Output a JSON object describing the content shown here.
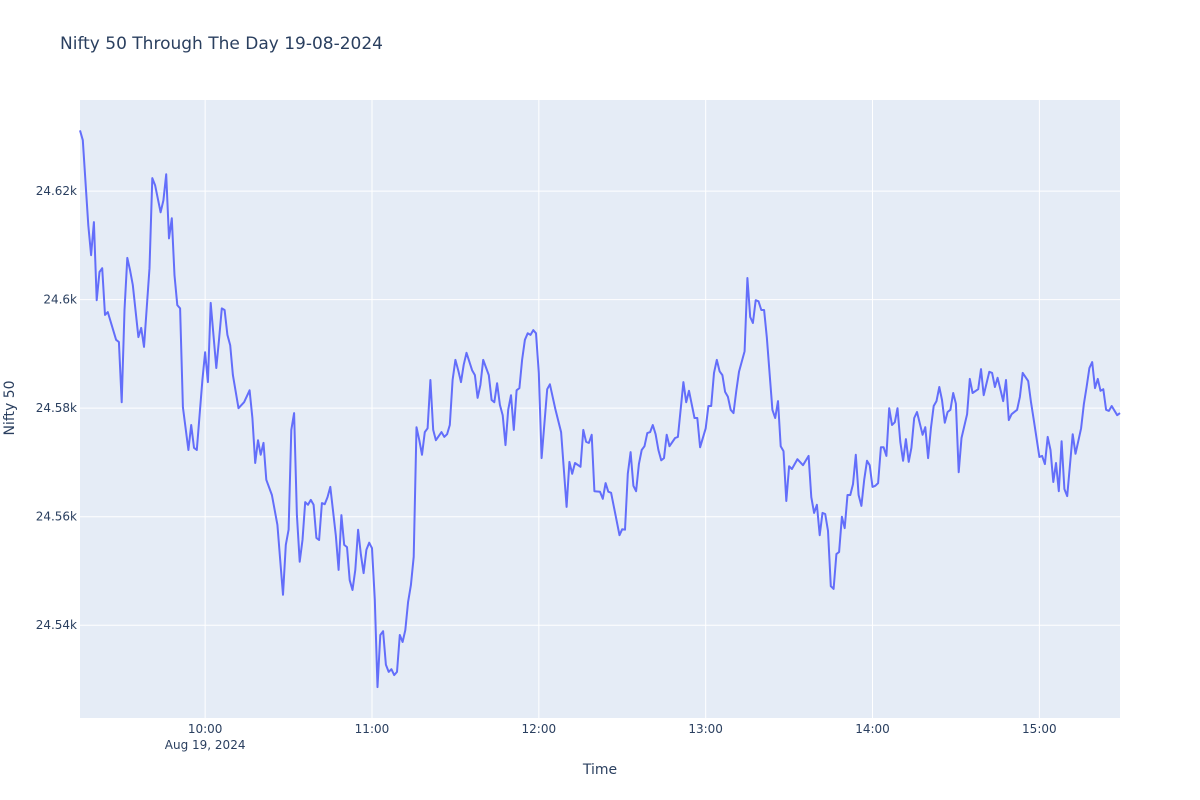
{
  "chart_data": {
    "type": "line",
    "title": "Nifty 50 Through The Day 19-08-2024",
    "xlabel": "Time",
    "ylabel": "Nifty 50",
    "xlim": [
      "09:15",
      "15:29"
    ],
    "ylim": [
      24522.9,
      24636.8
    ],
    "grid": true,
    "line_color": "#636efa",
    "plot_bg": "#e5ecf6",
    "x_ticks": [
      {
        "time": "10:00",
        "label": "10:00",
        "sublabel": "Aug 19, 2024"
      },
      {
        "time": "11:00",
        "label": "11:00"
      },
      {
        "time": "12:00",
        "label": "12:00"
      },
      {
        "time": "13:00",
        "label": "13:00"
      },
      {
        "time": "14:00",
        "label": "14:00"
      },
      {
        "time": "15:00",
        "label": "15:00"
      }
    ],
    "y_ticks": [
      {
        "value": 24540,
        "label": "24.54k"
      },
      {
        "value": 24560,
        "label": "24.56k"
      },
      {
        "value": 24580,
        "label": "24.58k"
      },
      {
        "value": 24600,
        "label": "24.6k"
      },
      {
        "value": 24620,
        "label": "24.62k"
      }
    ],
    "points": [
      [
        "09:15",
        24631.2
      ],
      [
        "09:16",
        24629.4
      ],
      [
        "09:18",
        24613.7
      ],
      [
        "09:19",
        24608.2
      ],
      [
        "09:20",
        24614.3
      ],
      [
        "09:21",
        24599.9
      ],
      [
        "09:22",
        24605.1
      ],
      [
        "09:23",
        24605.8
      ],
      [
        "09:24",
        24597.2
      ],
      [
        "09:25",
        24597.7
      ],
      [
        "09:28",
        24592.6
      ],
      [
        "09:29",
        24592.2
      ],
      [
        "09:30",
        24581.1
      ],
      [
        "09:31",
        24598.1
      ],
      [
        "09:32",
        24607.7
      ],
      [
        "09:33",
        24605.4
      ],
      [
        "09:34",
        24602.7
      ],
      [
        "09:36",
        24593.1
      ],
      [
        "09:37",
        24594.8
      ],
      [
        "09:38",
        24591.3
      ],
      [
        "09:40",
        24605.8
      ],
      [
        "09:41",
        24622.4
      ],
      [
        "09:42",
        24621.1
      ],
      [
        "09:44",
        24616.1
      ],
      [
        "09:45",
        24618.3
      ],
      [
        "09:46",
        24623.1
      ],
      [
        "09:47",
        24611.3
      ],
      [
        "09:48",
        24615.0
      ],
      [
        "09:49",
        24604.5
      ],
      [
        "09:50",
        24599.0
      ],
      [
        "09:51",
        24598.4
      ],
      [
        "09:52",
        24580.2
      ],
      [
        "09:54",
        24572.3
      ],
      [
        "09:55",
        24576.9
      ],
      [
        "09:56",
        24572.7
      ],
      [
        "09:57",
        24572.3
      ],
      [
        "09:59",
        24585.2
      ],
      [
        "10:00",
        24590.3
      ],
      [
        "10:01",
        24584.8
      ],
      [
        "10:02",
        24599.4
      ],
      [
        "10:04",
        24587.4
      ],
      [
        "10:05",
        24592.6
      ],
      [
        "10:06",
        24598.4
      ],
      [
        "10:07",
        24598.1
      ],
      [
        "10:08",
        24593.5
      ],
      [
        "10:09",
        24591.6
      ],
      [
        "10:10",
        24586.1
      ],
      [
        "10:12",
        24580.0
      ],
      [
        "10:14",
        24581.1
      ],
      [
        "10:16",
        24583.3
      ],
      [
        "10:17",
        24578.2
      ],
      [
        "10:18",
        24569.9
      ],
      [
        "10:19",
        24574.1
      ],
      [
        "10:20",
        24571.4
      ],
      [
        "10:21",
        24573.6
      ],
      [
        "10:22",
        24566.8
      ],
      [
        "10:24",
        24564.0
      ],
      [
        "10:26",
        24558.5
      ],
      [
        "10:27",
        24552.0
      ],
      [
        "10:28",
        24545.6
      ],
      [
        "10:29",
        24554.8
      ],
      [
        "10:30",
        24557.6
      ],
      [
        "10:31",
        24576.0
      ],
      [
        "10:32",
        24579.1
      ],
      [
        "10:33",
        24560.3
      ],
      [
        "10:34",
        24551.7
      ],
      [
        "10:35",
        24555.7
      ],
      [
        "10:36",
        24562.7
      ],
      [
        "10:37",
        24562.2
      ],
      [
        "10:38",
        24563.1
      ],
      [
        "10:39",
        24562.2
      ],
      [
        "10:40",
        24556.1
      ],
      [
        "10:41",
        24555.7
      ],
      [
        "10:42",
        24562.5
      ],
      [
        "10:43",
        24562.3
      ],
      [
        "10:44",
        24563.6
      ],
      [
        "10:45",
        24565.5
      ],
      [
        "10:47",
        24556.6
      ],
      [
        "10:48",
        24550.2
      ],
      [
        "10:49",
        24560.3
      ],
      [
        "10:50",
        24554.8
      ],
      [
        "10:51",
        24554.4
      ],
      [
        "10:52",
        24548.3
      ],
      [
        "10:53",
        24546.5
      ],
      [
        "10:54",
        24550.2
      ],
      [
        "10:55",
        24557.6
      ],
      [
        "10:56",
        24553.0
      ],
      [
        "10:57",
        24549.6
      ],
      [
        "10:58",
        24553.9
      ],
      [
        "10:59",
        24555.2
      ],
      [
        "11:00",
        24554.2
      ],
      [
        "11:01",
        24544.7
      ],
      [
        "11:02",
        24528.6
      ],
      [
        "11:03",
        24538.2
      ],
      [
        "11:04",
        24538.9
      ],
      [
        "11:05",
        24532.7
      ],
      [
        "11:06",
        24531.4
      ],
      [
        "11:07",
        24531.9
      ],
      [
        "11:08",
        24530.8
      ],
      [
        "11:09",
        24531.4
      ],
      [
        "11:10",
        24538.2
      ],
      [
        "11:11",
        24536.9
      ],
      [
        "11:12",
        24539.1
      ],
      [
        "11:13",
        24544.3
      ],
      [
        "11:14",
        24547.4
      ],
      [
        "11:15",
        24552.6
      ],
      [
        "11:16",
        24576.5
      ],
      [
        "11:17",
        24574.1
      ],
      [
        "11:18",
        24571.4
      ],
      [
        "11:19",
        24575.6
      ],
      [
        "11:20",
        24576.3
      ],
      [
        "11:21",
        24585.2
      ],
      [
        "11:22",
        24576.0
      ],
      [
        "11:23",
        24574.1
      ],
      [
        "11:25",
        24575.6
      ],
      [
        "11:26",
        24574.7
      ],
      [
        "11:27",
        24575.2
      ],
      [
        "11:28",
        24576.9
      ],
      [
        "11:29",
        24585.2
      ],
      [
        "11:30",
        24588.9
      ],
      [
        "11:31",
        24587.0
      ],
      [
        "11:32",
        24584.8
      ],
      [
        "11:33",
        24588.0
      ],
      [
        "11:34",
        24590.2
      ],
      [
        "11:36",
        24587.0
      ],
      [
        "11:37",
        24586.1
      ],
      [
        "11:38",
        24581.9
      ],
      [
        "11:39",
        24584.3
      ],
      [
        "11:40",
        24588.9
      ],
      [
        "11:42",
        24586.1
      ],
      [
        "11:43",
        24581.5
      ],
      [
        "11:44",
        24581.1
      ],
      [
        "11:45",
        24584.6
      ],
      [
        "11:46",
        24580.6
      ],
      [
        "11:47",
        24578.7
      ],
      [
        "11:48",
        24573.2
      ],
      [
        "11:49",
        24579.7
      ],
      [
        "11:50",
        24582.4
      ],
      [
        "11:51",
        24576.0
      ],
      [
        "11:52",
        24583.3
      ],
      [
        "11:53",
        24583.7
      ],
      [
        "11:54",
        24588.9
      ],
      [
        "11:55",
        24592.6
      ],
      [
        "11:56",
        24593.8
      ],
      [
        "11:57",
        24593.5
      ],
      [
        "11:58",
        24594.4
      ],
      [
        "11:59",
        24593.8
      ],
      [
        "12:00",
        24586.5
      ],
      [
        "12:01",
        24570.8
      ],
      [
        "12:03",
        24583.5
      ],
      [
        "12:04",
        24584.4
      ],
      [
        "12:06",
        24579.7
      ],
      [
        "12:08",
        24575.6
      ],
      [
        "12:10",
        24561.8
      ],
      [
        "12:11",
        24570.1
      ],
      [
        "12:12",
        24567.9
      ],
      [
        "12:13",
        24569.9
      ],
      [
        "12:15",
        24569.2
      ],
      [
        "12:16",
        24576.0
      ],
      [
        "12:17",
        24573.8
      ],
      [
        "12:18",
        24573.6
      ],
      [
        "12:19",
        24575.1
      ],
      [
        "12:20",
        24564.7
      ],
      [
        "12:22",
        24564.6
      ],
      [
        "12:23",
        24563.3
      ],
      [
        "12:24",
        24566.2
      ],
      [
        "12:25",
        24564.6
      ],
      [
        "12:26",
        24564.4
      ],
      [
        "12:27",
        24561.8
      ],
      [
        "12:29",
        24556.6
      ],
      [
        "12:30",
        24557.7
      ],
      [
        "12:31",
        24557.6
      ],
      [
        "12:32",
        24567.9
      ],
      [
        "12:33",
        24571.9
      ],
      [
        "12:34",
        24565.7
      ],
      [
        "12:35",
        24564.7
      ],
      [
        "12:36",
        24569.7
      ],
      [
        "12:37",
        24572.3
      ],
      [
        "12:38",
        24573.0
      ],
      [
        "12:39",
        24575.4
      ],
      [
        "12:40",
        24575.6
      ],
      [
        "12:41",
        24576.9
      ],
      [
        "12:42",
        24575.2
      ],
      [
        "12:43",
        24572.3
      ],
      [
        "12:44",
        24570.4
      ],
      [
        "12:45",
        24570.8
      ],
      [
        "12:46",
        24575.1
      ],
      [
        "12:47",
        24573.0
      ],
      [
        "12:49",
        24574.5
      ],
      [
        "12:50",
        24574.7
      ],
      [
        "12:52",
        24584.8
      ],
      [
        "12:53",
        24581.1
      ],
      [
        "12:54",
        24583.2
      ],
      [
        "12:56",
        24578.2
      ],
      [
        "12:57",
        24578.2
      ],
      [
        "12:58",
        24572.8
      ],
      [
        "13:00",
        24576.3
      ],
      [
        "13:01",
        24580.4
      ],
      [
        "13:02",
        24580.4
      ],
      [
        "13:03",
        24586.5
      ],
      [
        "13:04",
        24588.9
      ],
      [
        "13:05",
        24586.8
      ],
      [
        "13:06",
        24586.1
      ],
      [
        "13:07",
        24583.0
      ],
      [
        "13:08",
        24582.1
      ],
      [
        "13:09",
        24579.7
      ],
      [
        "13:10",
        24579.1
      ],
      [
        "13:11",
        24583.2
      ],
      [
        "13:12",
        24586.7
      ],
      [
        "13:14",
        24590.5
      ],
      [
        "13:15",
        24604.0
      ],
      [
        "13:16",
        24596.8
      ],
      [
        "13:17",
        24595.7
      ],
      [
        "13:18",
        24599.9
      ],
      [
        "13:19",
        24599.7
      ],
      [
        "13:20",
        24598.1
      ],
      [
        "13:21",
        24598.1
      ],
      [
        "13:22",
        24593.1
      ],
      [
        "13:24",
        24579.7
      ],
      [
        "13:25",
        24578.2
      ],
      [
        "13:26",
        24581.3
      ],
      [
        "13:27",
        24573.0
      ],
      [
        "13:28",
        24572.1
      ],
      [
        "13:29",
        24562.9
      ],
      [
        "13:30",
        24569.3
      ],
      [
        "13:31",
        24568.8
      ],
      [
        "13:33",
        24570.6
      ],
      [
        "13:35",
        24569.5
      ],
      [
        "13:37",
        24571.2
      ],
      [
        "13:38",
        24563.6
      ],
      [
        "13:39",
        24560.7
      ],
      [
        "13:40",
        24562.2
      ],
      [
        "13:41",
        24556.6
      ],
      [
        "13:42",
        24560.7
      ],
      [
        "13:43",
        24560.5
      ],
      [
        "13:44",
        24557.4
      ],
      [
        "13:45",
        24547.2
      ],
      [
        "13:46",
        24546.7
      ],
      [
        "13:47",
        24553.1
      ],
      [
        "13:48",
        24553.5
      ],
      [
        "13:49",
        24560.0
      ],
      [
        "13:50",
        24557.9
      ],
      [
        "13:51",
        24564.0
      ],
      [
        "13:52",
        24564.0
      ],
      [
        "13:53",
        24566.0
      ],
      [
        "13:54",
        24571.4
      ],
      [
        "13:55",
        24564.0
      ],
      [
        "13:56",
        24562.0
      ],
      [
        "13:57",
        24566.8
      ],
      [
        "13:58",
        24570.3
      ],
      [
        "13:59",
        24569.5
      ],
      [
        "14:00",
        24565.5
      ],
      [
        "14:01",
        24565.7
      ],
      [
        "14:02",
        24566.2
      ],
      [
        "14:03",
        24572.8
      ],
      [
        "14:04",
        24572.8
      ],
      [
        "14:05",
        24571.2
      ],
      [
        "14:06",
        24580.0
      ],
      [
        "14:07",
        24576.9
      ],
      [
        "14:08",
        24577.4
      ],
      [
        "14:09",
        24580.0
      ],
      [
        "14:10",
        24573.8
      ],
      [
        "14:11",
        24570.3
      ],
      [
        "14:12",
        24574.3
      ],
      [
        "14:13",
        24570.1
      ],
      [
        "14:14",
        24572.7
      ],
      [
        "14:15",
        24578.2
      ],
      [
        "14:16",
        24579.3
      ],
      [
        "14:18",
        24575.1
      ],
      [
        "14:19",
        24576.5
      ],
      [
        "14:20",
        24570.8
      ],
      [
        "14:21",
        24576.3
      ],
      [
        "14:22",
        24580.4
      ],
      [
        "14:23",
        24581.3
      ],
      [
        "14:24",
        24583.9
      ],
      [
        "14:25",
        24581.5
      ],
      [
        "14:26",
        24577.3
      ],
      [
        "14:27",
        24579.3
      ],
      [
        "14:28",
        24579.7
      ],
      [
        "14:29",
        24582.8
      ],
      [
        "14:30",
        24580.8
      ],
      [
        "14:31",
        24568.2
      ],
      [
        "14:32",
        24574.5
      ],
      [
        "14:34",
        24578.9
      ],
      [
        "14:35",
        24585.4
      ],
      [
        "14:36",
        24582.8
      ],
      [
        "14:38",
        24583.5
      ],
      [
        "14:39",
        24587.2
      ],
      [
        "14:40",
        24582.4
      ],
      [
        "14:42",
        24586.7
      ],
      [
        "14:43",
        24586.5
      ],
      [
        "14:44",
        24583.9
      ],
      [
        "14:45",
        24585.6
      ],
      [
        "14:47",
        24581.3
      ],
      [
        "14:48",
        24585.2
      ],
      [
        "14:49",
        24577.8
      ],
      [
        "14:50",
        24578.9
      ],
      [
        "14:52",
        24579.7
      ],
      [
        "14:53",
        24582.1
      ],
      [
        "14:54",
        24586.5
      ],
      [
        "14:56",
        24585.0
      ],
      [
        "14:57",
        24581.1
      ],
      [
        "14:58",
        24577.8
      ],
      [
        "15:00",
        24571.0
      ],
      [
        "15:01",
        24571.2
      ],
      [
        "15:02",
        24569.7
      ],
      [
        "15:03",
        24574.7
      ],
      [
        "15:04",
        24572.3
      ],
      [
        "15:05",
        24566.4
      ],
      [
        "15:06",
        24569.9
      ],
      [
        "15:07",
        24564.7
      ],
      [
        "15:08",
        24573.9
      ],
      [
        "15:09",
        24565.1
      ],
      [
        "15:10",
        24563.8
      ],
      [
        "15:12",
        24575.2
      ],
      [
        "15:13",
        24571.6
      ],
      [
        "15:15",
        24576.3
      ],
      [
        "15:16",
        24580.8
      ],
      [
        "15:17",
        24583.9
      ],
      [
        "15:18",
        24587.4
      ],
      [
        "15:19",
        24588.5
      ],
      [
        "15:20",
        24583.7
      ],
      [
        "15:21",
        24585.4
      ],
      [
        "15:22",
        24583.2
      ],
      [
        "15:23",
        24583.5
      ],
      [
        "15:24",
        24579.7
      ],
      [
        "15:25",
        24579.5
      ],
      [
        "15:26",
        24580.4
      ],
      [
        "15:28",
        24578.7
      ],
      [
        "15:29",
        24579.1
      ]
    ]
  }
}
